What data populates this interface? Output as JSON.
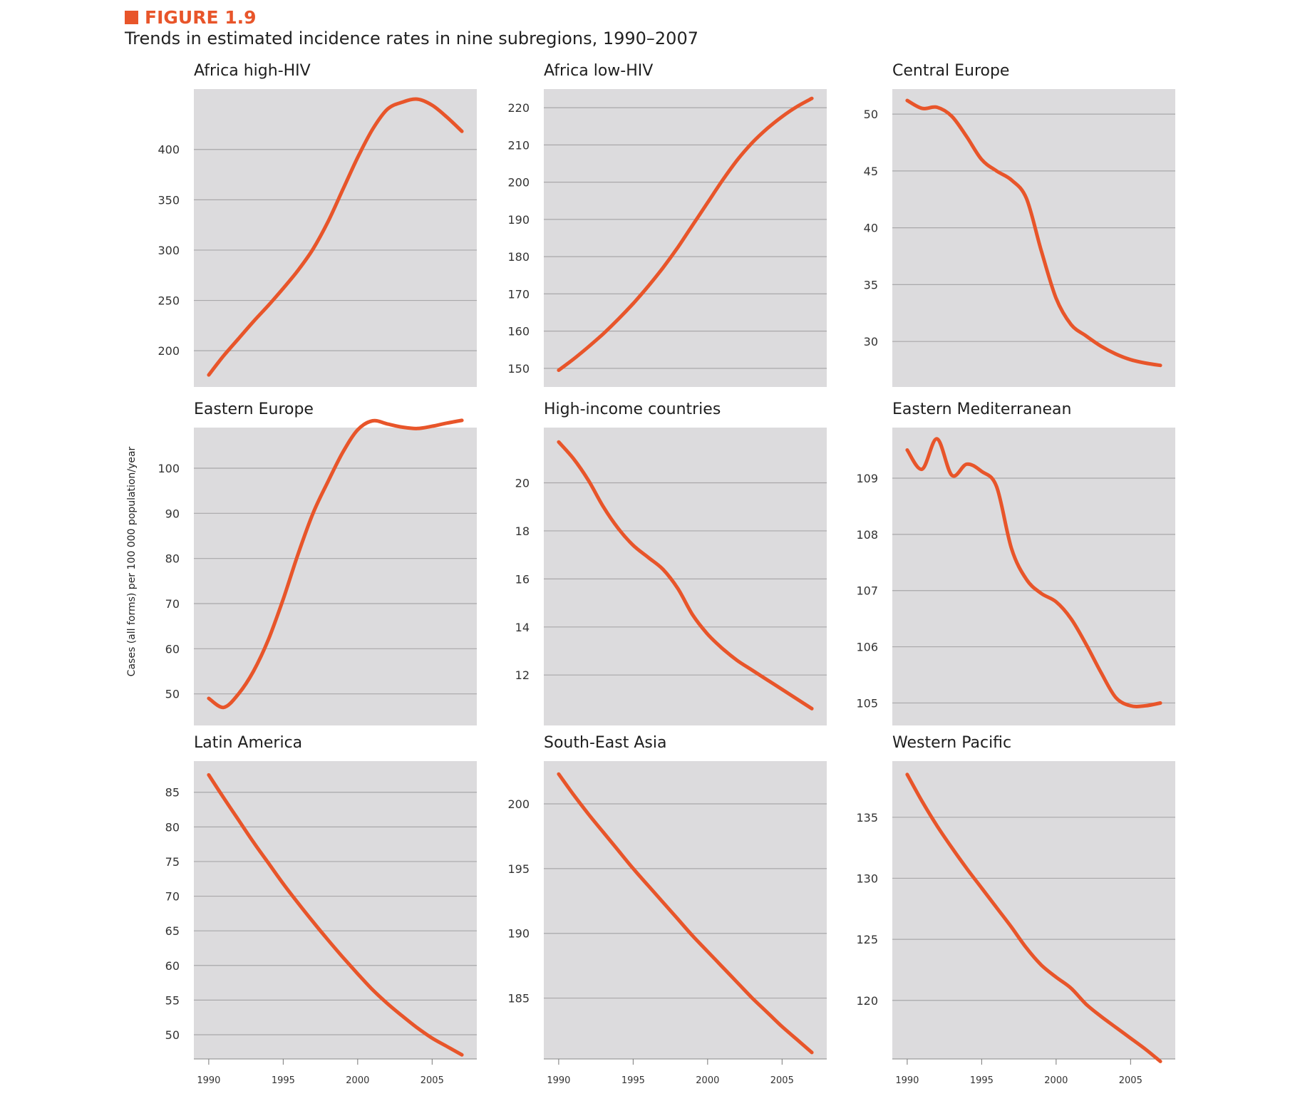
{
  "figure": {
    "label": "FIGURE 1.9",
    "title": "Trends in estimated incidence rates in nine subregions, 1990–2007",
    "y_axis_label": "Cases (all forms) per 100 000 population/year",
    "x_tick_labels": [
      "1990",
      "1995",
      "2000",
      "2005"
    ],
    "colors": {
      "line": "#e8552a",
      "plot_bg": "#dcdbdd",
      "grid": "#a9a8aa",
      "accent": "#e8552a"
    }
  },
  "chart_data": [
    {
      "type": "line",
      "title": "Africa high-HIV",
      "xlabel": "",
      "ylabel": "Cases (all forms) per 100 000 population/year",
      "xlim": [
        1989,
        2008
      ],
      "ylim": [
        164,
        460
      ],
      "x_ticks": [
        1990,
        1995,
        2000,
        2005
      ],
      "y_ticks": [
        200,
        250,
        300,
        350,
        400
      ],
      "x": [
        1990,
        1991,
        1992,
        1993,
        1994,
        1995,
        1996,
        1997,
        1998,
        1999,
        2000,
        2001,
        2002,
        2003,
        2004,
        2005,
        2006,
        2007
      ],
      "y": [
        176,
        195,
        212,
        229,
        245,
        262,
        280,
        301,
        328,
        360,
        392,
        420,
        440,
        447,
        450,
        444,
        432,
        418
      ]
    },
    {
      "type": "line",
      "title": "Africa low-HIV",
      "xlabel": "",
      "ylabel": "",
      "xlim": [
        1989,
        2008
      ],
      "ylim": [
        145,
        225
      ],
      "x_ticks": [
        1990,
        1995,
        2000,
        2005
      ],
      "y_ticks": [
        150,
        160,
        170,
        180,
        190,
        200,
        210,
        220
      ],
      "x": [
        1990,
        1991,
        1992,
        1993,
        1994,
        1995,
        1996,
        1997,
        1998,
        1999,
        2000,
        2001,
        2002,
        2003,
        2004,
        2005,
        2006,
        2007
      ],
      "y": [
        149.5,
        152.5,
        155.8,
        159.3,
        163.2,
        167.4,
        172.0,
        177.0,
        182.5,
        188.5,
        194.5,
        200.5,
        206.0,
        210.6,
        214.4,
        217.6,
        220.3,
        222.5
      ]
    },
    {
      "type": "line",
      "title": "Central Europe",
      "xlabel": "",
      "ylabel": "",
      "xlim": [
        1989,
        2008
      ],
      "ylim": [
        26,
        52.2
      ],
      "x_ticks": [
        1990,
        1995,
        2000,
        2005
      ],
      "y_ticks": [
        30,
        35,
        40,
        45,
        50
      ],
      "x": [
        1990,
        1991,
        1992,
        1993,
        1994,
        1995,
        1996,
        1997,
        1998,
        1999,
        2000,
        2001,
        2002,
        2003,
        2004,
        2005,
        2006,
        2007
      ],
      "y": [
        51.2,
        50.5,
        50.6,
        49.8,
        48.0,
        46.0,
        45.0,
        44.2,
        42.6,
        38.0,
        33.8,
        31.5,
        30.5,
        29.6,
        28.9,
        28.4,
        28.1,
        27.9
      ]
    },
    {
      "type": "line",
      "title": "Eastern Europe",
      "xlabel": "",
      "ylabel": "",
      "xlim": [
        1989,
        2008
      ],
      "ylim": [
        43,
        109
      ],
      "x_ticks": [
        1990,
        1995,
        2000,
        2005
      ],
      "y_ticks": [
        50,
        60,
        70,
        80,
        90,
        100
      ],
      "x": [
        1990,
        1991,
        1992,
        1993,
        1994,
        1995,
        1996,
        1997,
        1998,
        1999,
        2000,
        2001,
        2002,
        2003,
        2004,
        2005,
        2006,
        2007
      ],
      "y": [
        49,
        47,
        50,
        55,
        62,
        71,
        81,
        90,
        97,
        103.5,
        108.5,
        110.5,
        109.8,
        109.1,
        108.8,
        109.3,
        110.0,
        110.6
      ]
    },
    {
      "type": "line",
      "title": "High-income countries",
      "xlabel": "",
      "ylabel": "",
      "xlim": [
        1989,
        2008
      ],
      "ylim": [
        9.9,
        22.3
      ],
      "x_ticks": [
        1990,
        1995,
        2000,
        2005
      ],
      "y_ticks": [
        12,
        14,
        16,
        18,
        20
      ],
      "x": [
        1990,
        1991,
        1992,
        1993,
        1994,
        1995,
        1996,
        1997,
        1998,
        1999,
        2000,
        2001,
        2002,
        2003,
        2004,
        2005,
        2006,
        2007
      ],
      "y": [
        21.7,
        21.0,
        20.1,
        19.0,
        18.1,
        17.4,
        16.9,
        16.4,
        15.6,
        14.5,
        13.7,
        13.1,
        12.6,
        12.2,
        11.8,
        11.4,
        11.0,
        10.6
      ]
    },
    {
      "type": "line",
      "title": "Eastern Mediterranean",
      "xlabel": "",
      "ylabel": "",
      "xlim": [
        1989,
        2008
      ],
      "ylim": [
        104.6,
        109.9
      ],
      "x_ticks": [
        1990,
        1995,
        2000,
        2005
      ],
      "y_ticks": [
        105,
        106,
        107,
        108,
        109
      ],
      "x": [
        1990,
        1991,
        1992,
        1993,
        1994,
        1995,
        1996,
        1997,
        1998,
        1999,
        2000,
        2001,
        2002,
        2003,
        2004,
        2005,
        2006,
        2007
      ],
      "y": [
        109.5,
        109.16,
        109.7,
        109.05,
        109.25,
        109.12,
        108.85,
        107.75,
        107.2,
        106.95,
        106.8,
        106.5,
        106.05,
        105.55,
        105.1,
        104.95,
        104.95,
        105.0
      ]
    },
    {
      "type": "line",
      "title": "Latin America",
      "xlabel": "",
      "ylabel": "",
      "xlim": [
        1989,
        2008
      ],
      "ylim": [
        46.5,
        89.5
      ],
      "x_ticks": [
        1990,
        1995,
        2000,
        2005
      ],
      "y_ticks": [
        50,
        55,
        60,
        65,
        70,
        75,
        80,
        85
      ],
      "x": [
        1990,
        1991,
        1992,
        1993,
        1994,
        1995,
        1996,
        1997,
        1998,
        1999,
        2000,
        2001,
        2002,
        2003,
        2004,
        2005,
        2006,
        2007
      ],
      "y": [
        87.5,
        84.2,
        81.0,
        77.8,
        74.8,
        71.8,
        69.0,
        66.3,
        63.7,
        61.2,
        58.8,
        56.5,
        54.5,
        52.7,
        51.0,
        49.5,
        48.3,
        47.1
      ]
    },
    {
      "type": "line",
      "title": "South-East Asia",
      "xlabel": "",
      "ylabel": "",
      "xlim": [
        1989,
        2008
      ],
      "ylim": [
        180.3,
        203.3
      ],
      "x_ticks": [
        1990,
        1995,
        2000,
        2005
      ],
      "y_ticks": [
        185,
        190,
        195,
        200
      ],
      "x": [
        1990,
        1991,
        1992,
        1993,
        1994,
        1995,
        1996,
        1997,
        1998,
        1999,
        2000,
        2001,
        2002,
        2003,
        2004,
        2005,
        2006,
        2007
      ],
      "y": [
        202.3,
        200.7,
        199.2,
        197.8,
        196.4,
        195.0,
        193.7,
        192.4,
        191.1,
        189.8,
        188.6,
        187.4,
        186.2,
        185.0,
        183.9,
        182.8,
        181.8,
        180.8
      ]
    },
    {
      "type": "line",
      "title": "Western Pacific",
      "xlabel": "",
      "ylabel": "",
      "xlim": [
        1989,
        2008
      ],
      "ylim": [
        115.2,
        139.6
      ],
      "x_ticks": [
        1990,
        1995,
        2000,
        2005
      ],
      "y_ticks": [
        120,
        125,
        130,
        135
      ],
      "x": [
        1990,
        1991,
        1992,
        1993,
        1994,
        1995,
        1996,
        1997,
        1998,
        1999,
        2000,
        2001,
        2002,
        2003,
        2004,
        2005,
        2006,
        2007
      ],
      "y": [
        138.5,
        136.3,
        134.3,
        132.5,
        130.8,
        129.2,
        127.6,
        126.0,
        124.3,
        122.9,
        121.9,
        121.0,
        119.7,
        118.7,
        117.8,
        116.9,
        116.0,
        115.0
      ]
    }
  ]
}
